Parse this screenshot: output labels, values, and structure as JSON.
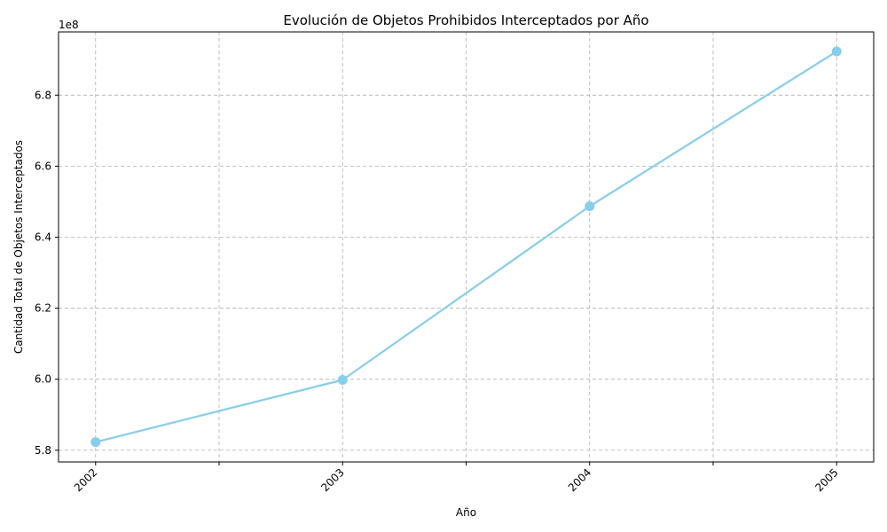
{
  "chart_data": {
    "type": "line",
    "title": "Evolución de Objetos Prohibidos Interceptados por Año",
    "xlabel": "Año",
    "ylabel": "Cantidad Total de Objetos Interceptados",
    "offset_label": "1e8",
    "x": [
      2002,
      2003,
      2004,
      2005
    ],
    "x_tick_labels": [
      "2002",
      "2003",
      "2004",
      "2005"
    ],
    "minor_x_ticks": [
      2002.5,
      2003.5,
      2004.5
    ],
    "y_ticks": [
      5.8,
      6.0,
      6.2,
      6.4,
      6.6,
      6.8
    ],
    "y_tick_labels": [
      "5.8",
      "6.0",
      "6.2",
      "6.4",
      "6.6",
      "6.8"
    ],
    "xlim": [
      2001.85,
      2005.15
    ],
    "ylim": [
      5.767,
      6.978
    ],
    "grid": true,
    "series": [
      {
        "values": [
          5.823,
          5.998,
          6.487,
          6.923
        ],
        "color": "#87CEEB",
        "marker": "circle"
      }
    ]
  }
}
